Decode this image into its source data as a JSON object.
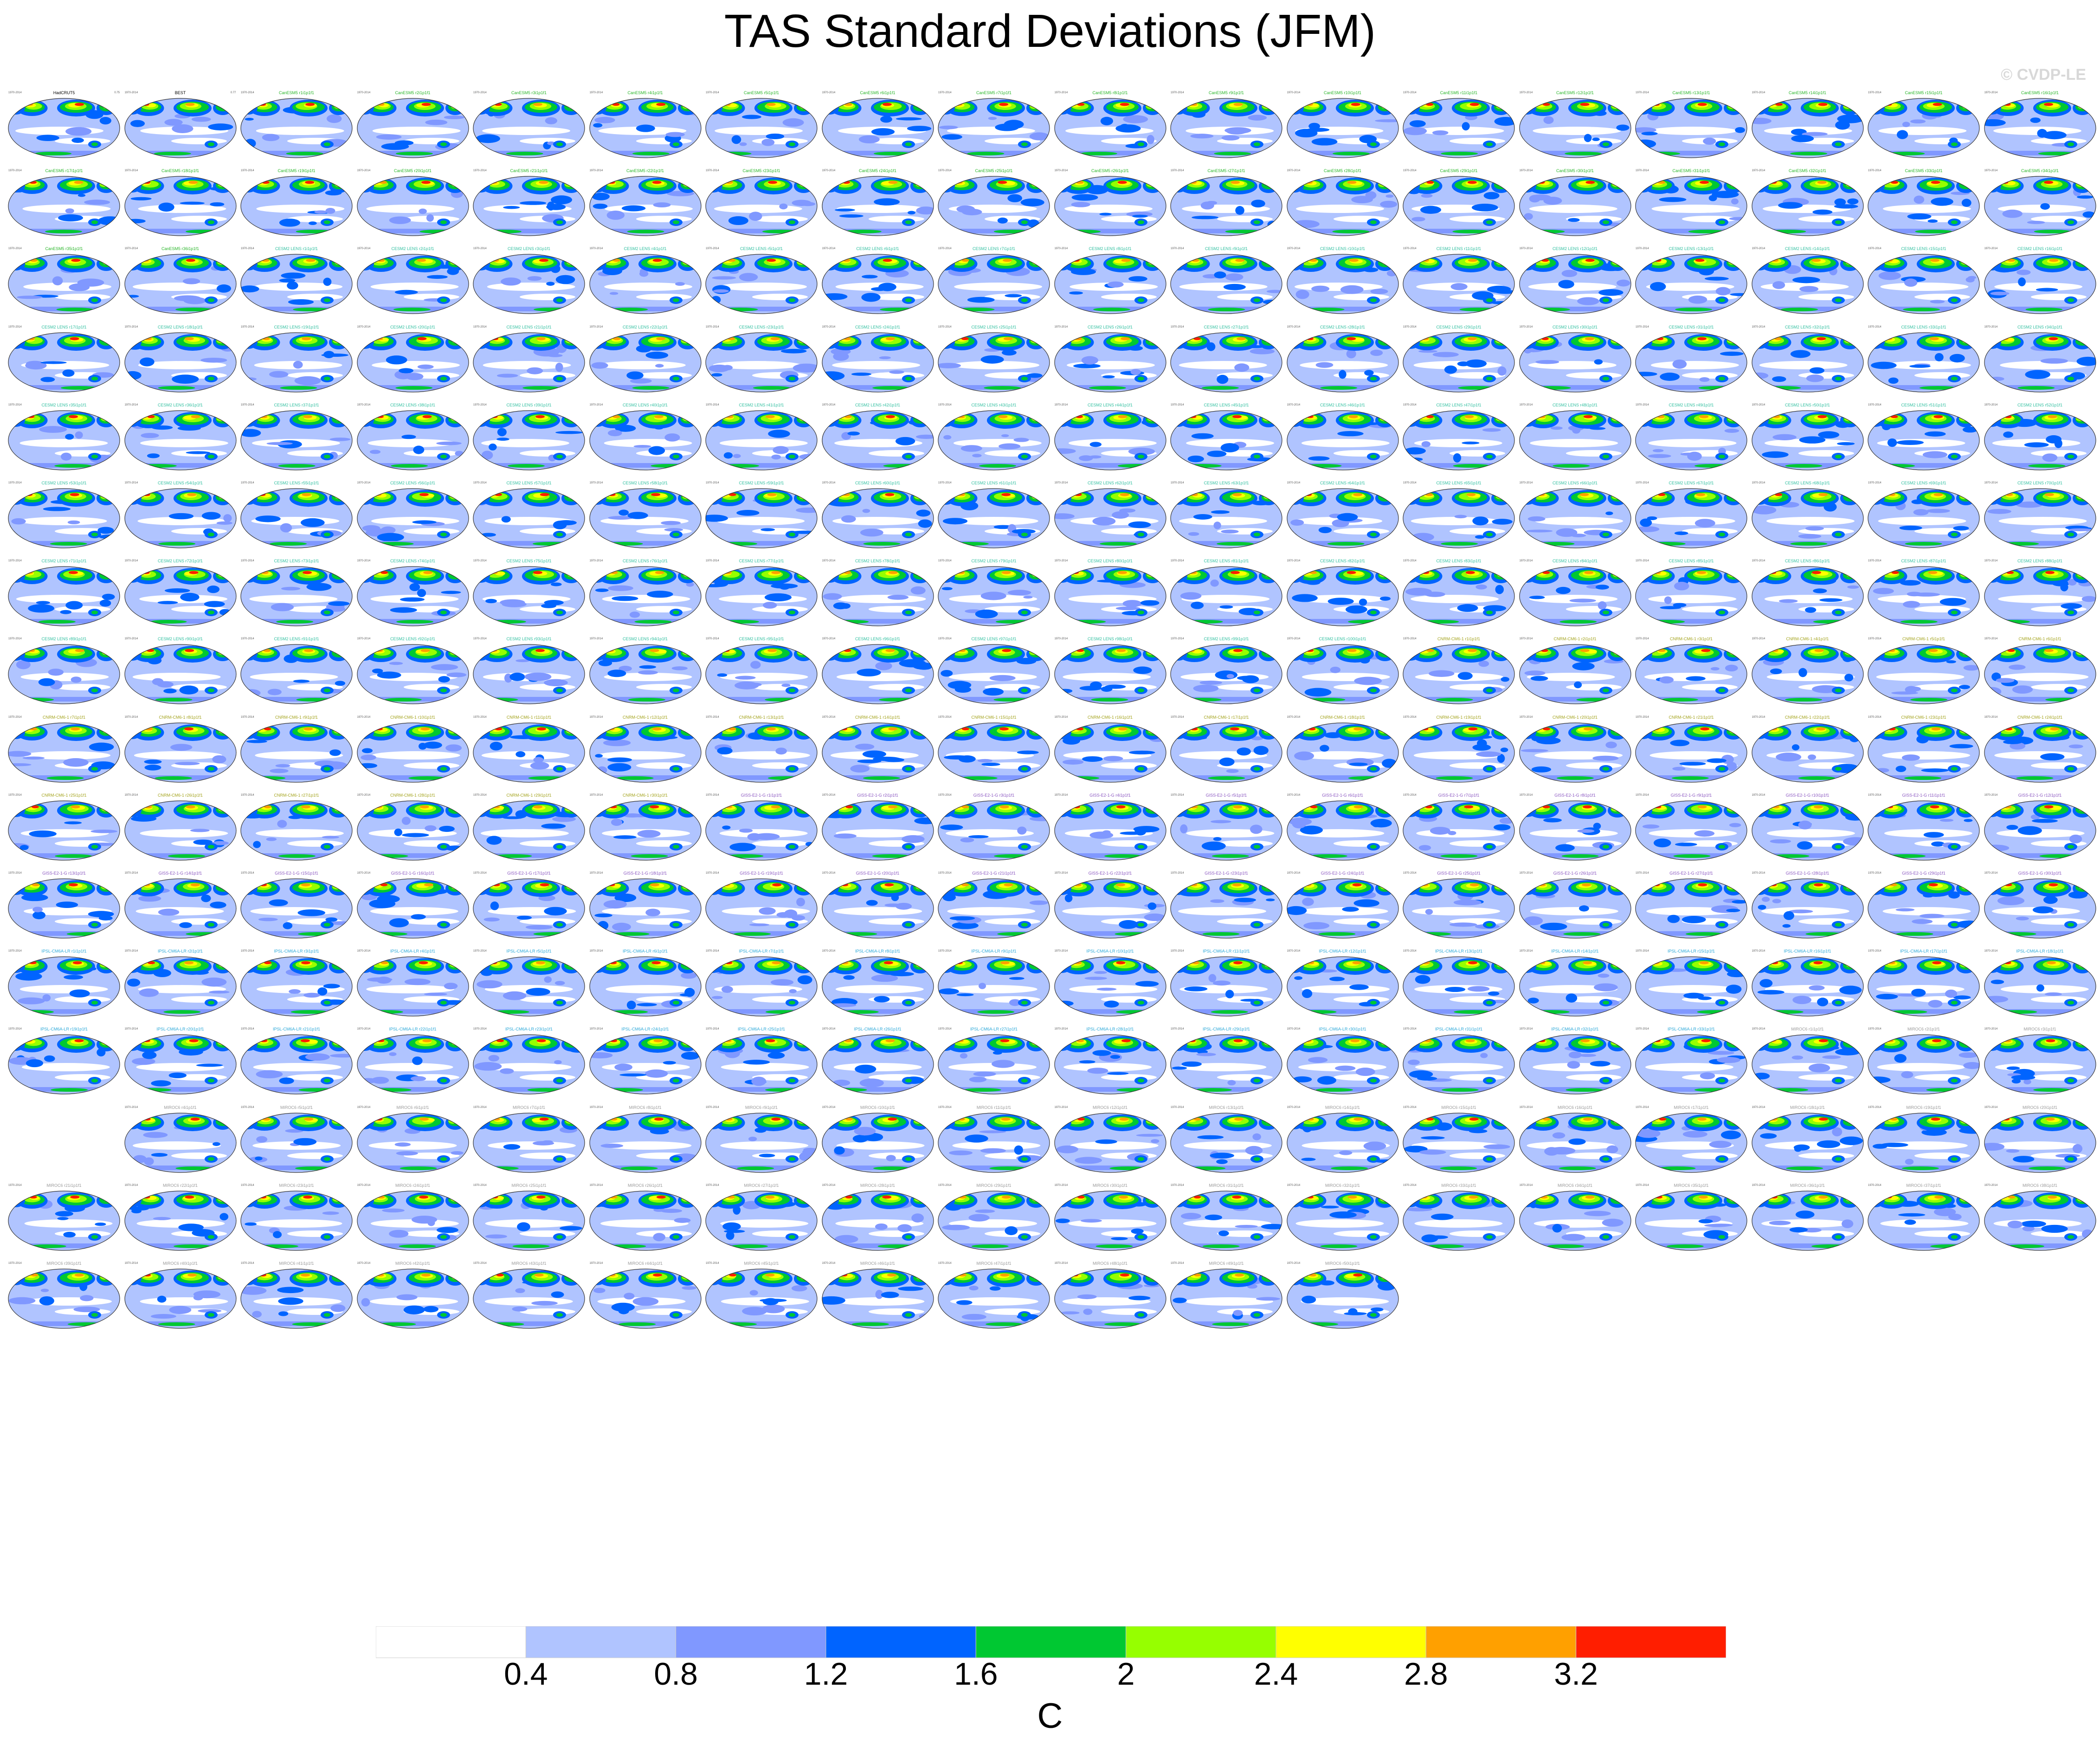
{
  "title": "TAS Standard Deviations (JFM)",
  "watermark": "© CVDP-LE",
  "units": "C",
  "colorbar": {
    "levels": [
      0.4,
      0.8,
      1.2,
      1.6,
      2,
      2.4,
      2.8,
      3.2
    ],
    "tick_labels": [
      "0.4",
      "0.8",
      "1.2",
      "1.6",
      "2",
      "2.4",
      "2.8",
      "3.2"
    ],
    "colors": [
      "#ffffff",
      "#b0c4ff",
      "#8098ff",
      "#0064ff",
      "#00c832",
      "#96ff00",
      "#ffff00",
      "#ffa000",
      "#ff1e00"
    ]
  },
  "panels": [
    {
      "title": "HadCRUT5",
      "period": "1970-2014",
      "mean": "0.75",
      "title_color": "#000000"
    },
    {
      "title": "BEST",
      "period": "1970-2014",
      "mean": "0.77",
      "title_color": "#000000"
    }
  ],
  "ensemble_groups": [
    {
      "name": "CanESM5",
      "members": 36,
      "title_color": "#27b527"
    },
    {
      "name": "CESM2 LENS",
      "members": 100,
      "title_color": "#2fbf9f"
    },
    {
      "name": "CNRM-CM6-1",
      "members": 30,
      "title_color": "#a3a31c"
    },
    {
      "name": "GISS-E2-1-G",
      "members": 30,
      "title_color": "#8a56c0"
    },
    {
      "name": "IPSL-CM6A-LR",
      "members": 33,
      "title_color": "#2aa7d8"
    },
    {
      "name": "MIROC6",
      "members": 50,
      "title_color": "#9a9a9a"
    }
  ],
  "chart_data": {
    "type": "heatmap",
    "title": "TAS Standard Deviations (JFM)",
    "variable": "TAS",
    "season": "JFM",
    "units": "C",
    "contour_levels": [
      0.4,
      0.8,
      1.2,
      1.6,
      2,
      2.4,
      2.8,
      3.2
    ],
    "panel_count": 281
  }
}
